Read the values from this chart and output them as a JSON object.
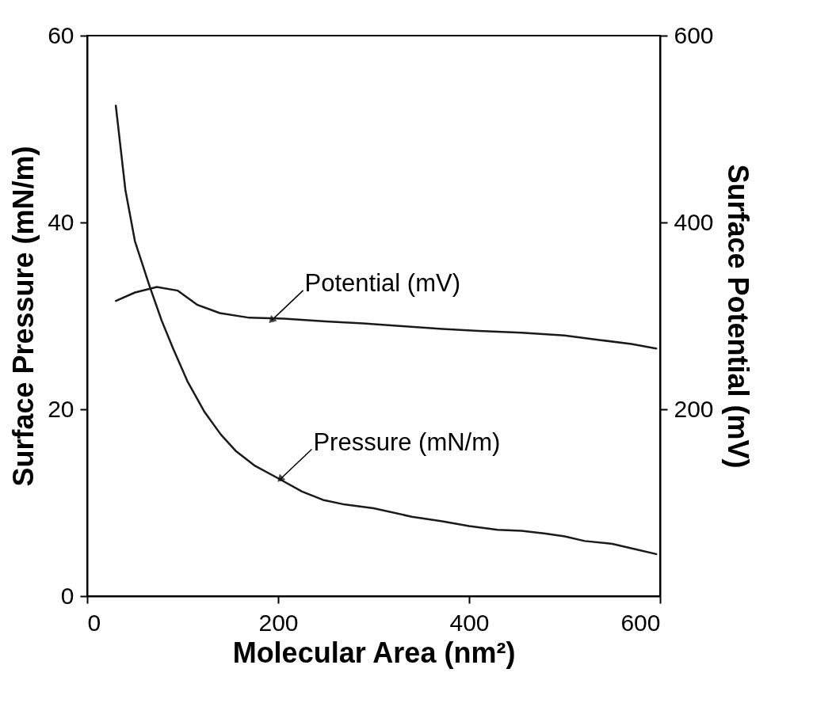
{
  "chart_data": {
    "type": "line",
    "xlabel": "Molecular Area (nm²)",
    "ylabel": "Surface Pressure (mN/m)",
    "y2label": "Surface Potential (mV)",
    "xlim": [
      0,
      600
    ],
    "xticks": [
      0,
      200,
      400,
      600
    ],
    "ylim": [
      0,
      60
    ],
    "yticks": [
      0,
      20,
      40,
      60
    ],
    "y2lim": [
      0,
      600
    ],
    "y2ticks": [
      200,
      400,
      600
    ],
    "marker": "none",
    "line_style": "solid",
    "series": [
      {
        "color": "#1a1a1a",
        "x": [
          30,
          40,
          50,
          65,
          78,
          90,
          105,
          123,
          140,
          156,
          175,
          202,
          225,
          247,
          270,
          300,
          340,
          372,
          400,
          430,
          455,
          480,
          500,
          521,
          550,
          575,
          596
        ],
        "values": [
          52.5,
          43.5,
          38,
          33.3,
          29.5,
          26.5,
          23,
          19.7,
          17.3,
          15.5,
          14,
          12.5,
          11.2,
          10.3,
          9.8,
          9.4,
          8.5,
          8,
          7.5,
          7.1,
          7,
          6.7,
          6.4,
          5.9,
          5.6,
          5,
          4.5
        ]
      },
      {
        "axis": "y2",
        "color": "#1a1a1a",
        "x": [
          30,
          50,
          73,
          95,
          115,
          139,
          170,
          206,
          250,
          289,
          330,
          372,
          410,
          455,
          500,
          538,
          570,
          596
        ],
        "values": [
          316,
          325,
          331,
          327,
          312,
          303,
          298,
          297,
          294,
          292,
          289,
          286,
          284,
          282,
          279,
          274,
          270,
          265
        ]
      }
    ],
    "annotations": [
      {
        "text": "Potential (mV)",
        "x": 193,
        "y": 29.5
      },
      {
        "text": "Pressure (mN/m)",
        "x": 202,
        "y": 12.5
      }
    ]
  }
}
